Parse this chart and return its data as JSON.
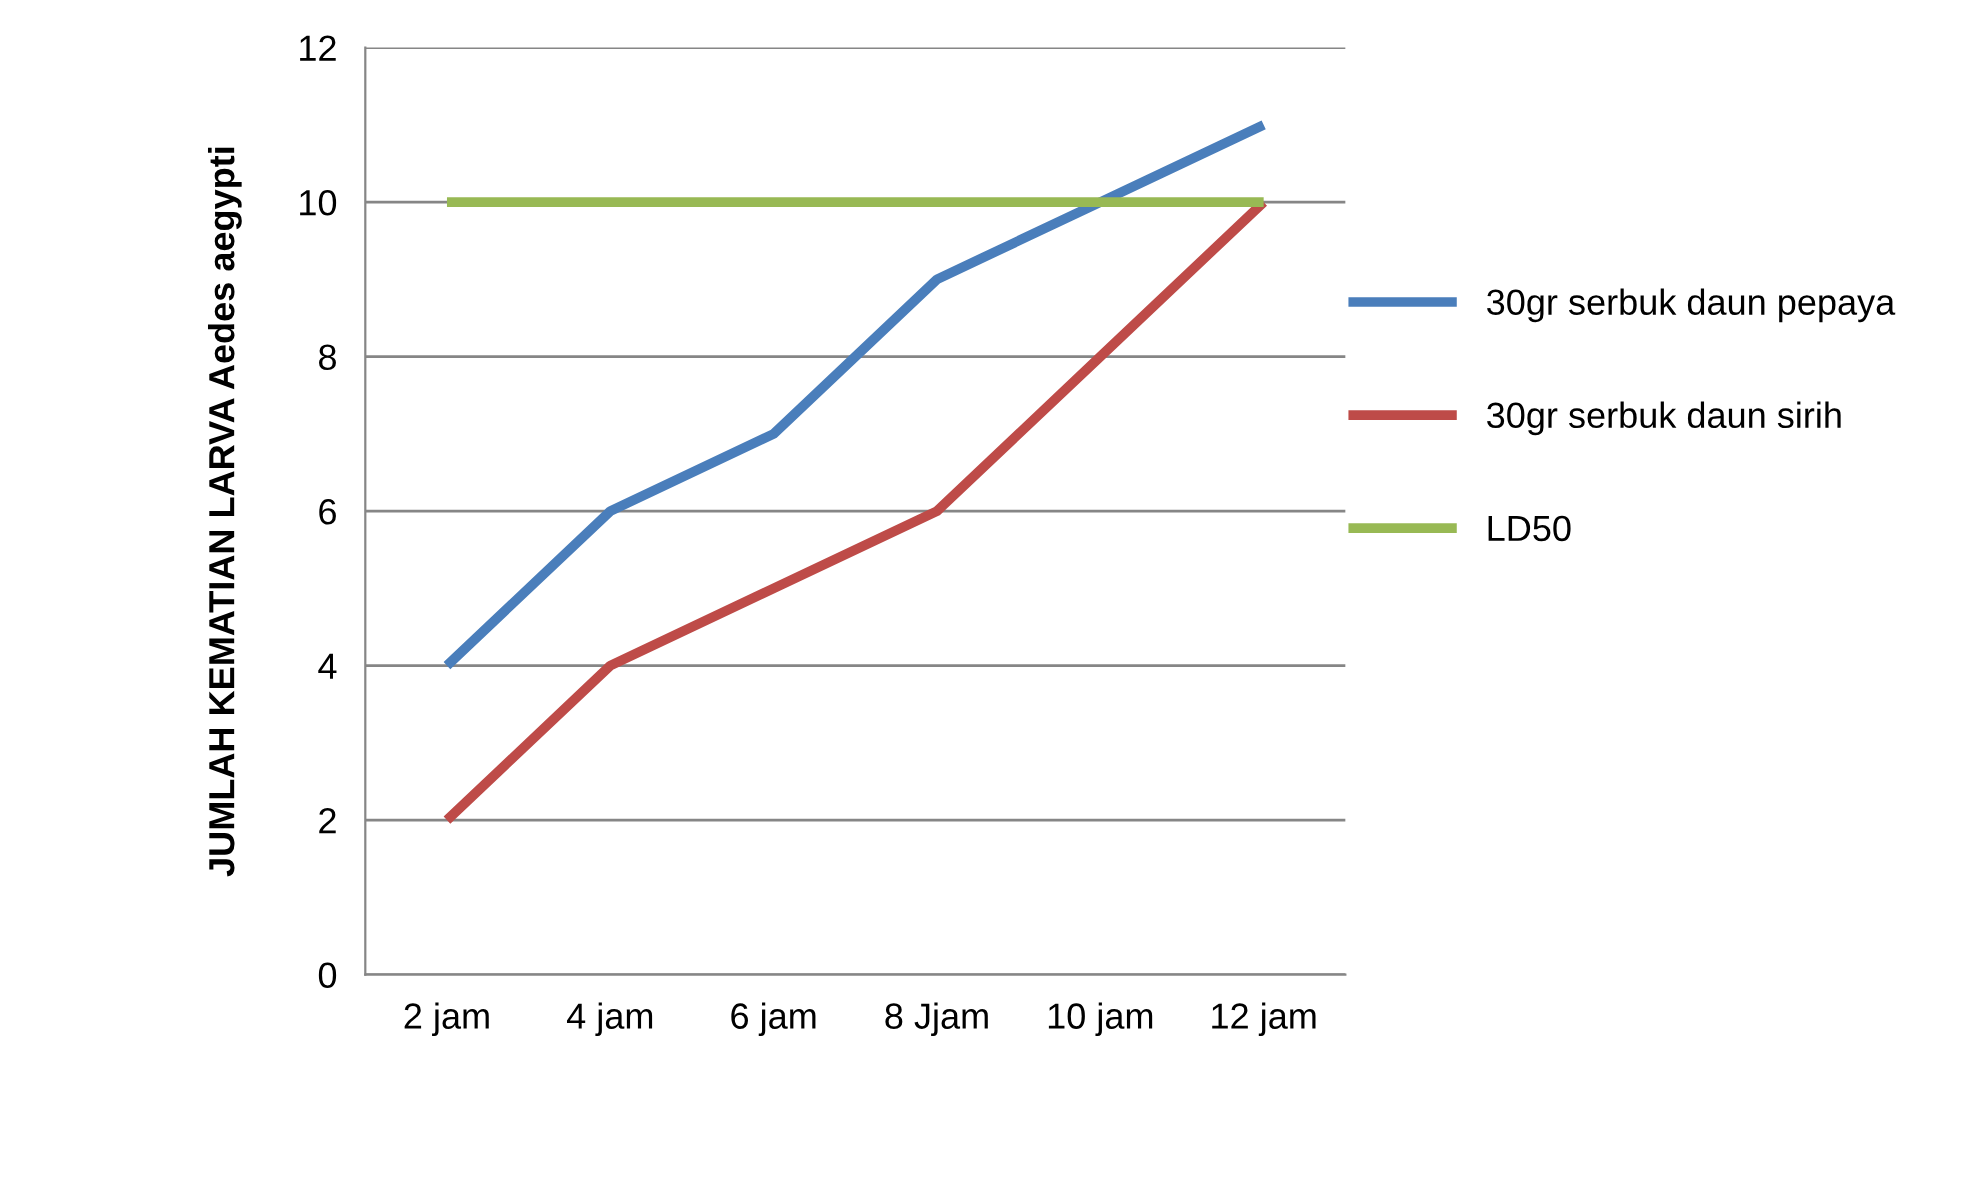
{
  "chart_data": {
    "type": "line",
    "ylabel": "JUMLAH KEMATIAN LARVA Aedes aegypti",
    "categories": [
      "2 jam",
      "4 jam",
      "6 jam",
      "8 Jjam",
      "10 jam",
      "12 jam"
    ],
    "series": [
      {
        "name": "30gr serbuk daun pepaya",
        "color": "#4a7ebb",
        "values": [
          4,
          6,
          7,
          9,
          10,
          11
        ]
      },
      {
        "name": "30gr serbuk daun sirih",
        "color": "#be4b48",
        "values": [
          2,
          4,
          5,
          6,
          8,
          10
        ]
      },
      {
        "name": "LD50",
        "color": "#98b954",
        "values": [
          10,
          10,
          10,
          10,
          10,
          10
        ]
      }
    ],
    "ylim": [
      0,
      12
    ],
    "yticks": [
      0,
      2,
      4,
      6,
      8,
      10,
      12
    ],
    "grid": "y",
    "legend": "right",
    "marker": "none",
    "line_style": "solid"
  }
}
